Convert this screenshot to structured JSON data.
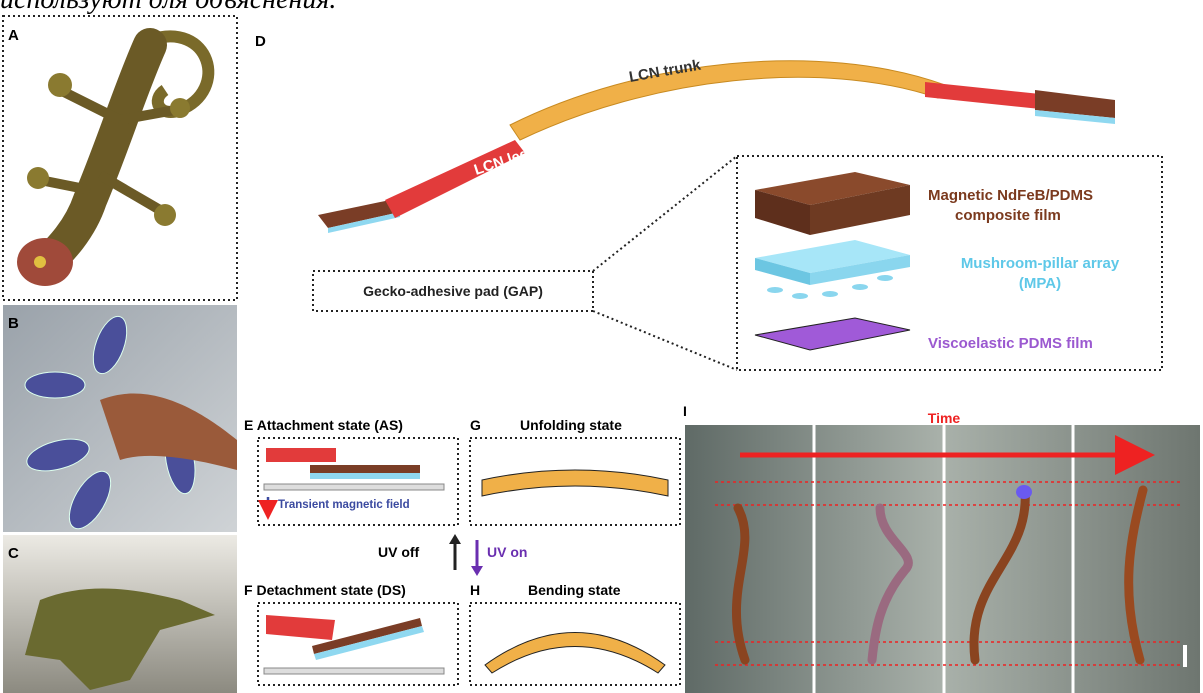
{
  "header_fragment": "используют для объяснения.",
  "panel_labels": [
    "A",
    "B",
    "C",
    "D",
    "E",
    "F",
    "G",
    "H",
    "I"
  ],
  "d": {
    "trunk": "LCN trunk",
    "leg": "LCN leg",
    "gap": "Gecko-adhesive pad (GAP)",
    "layers": [
      {
        "lines": [
          "Magnetic NdFeB/PDMS",
          "composite film"
        ]
      },
      {
        "lines": [
          "Mushroom-pillar array",
          "(MPA)"
        ]
      },
      {
        "lines": [
          "Viscoelastic PDMS film"
        ]
      }
    ]
  },
  "e": {
    "title": "Attachment state (AS)",
    "field": "Transient magnetic field"
  },
  "f": {
    "title": "Detachment state (DS)"
  },
  "g": {
    "title": "Unfolding state"
  },
  "h": {
    "title": "Bending state"
  },
  "uv": {
    "off": "UV off",
    "on": "UV on"
  },
  "i": {
    "time": "Time"
  }
}
